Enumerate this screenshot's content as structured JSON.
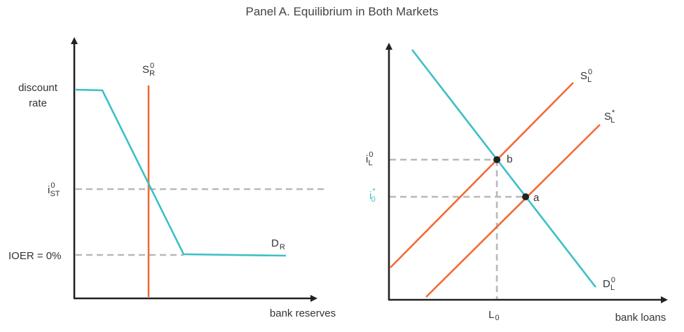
{
  "title": "Panel A. Equilibrium in Both Markets",
  "left_panel": {
    "ylabel_line1": "discount",
    "ylabel_line2": "rate",
    "xlabel": "bank reserves",
    "istar_main": "i",
    "istar_sup": "0",
    "istar_sub": "ST",
    "ioer": "IOER = 0%",
    "supply_main": "S",
    "supply_sup": "0",
    "supply_sub": "R",
    "demand_main": "D",
    "demand_sub": "R"
  },
  "right_panel": {
    "xlabel": "bank loans",
    "il_main": "i",
    "il_sup": "0",
    "il_sub": "L",
    "i0_main": "i",
    "i0_sup": "*",
    "i0_sub": "0",
    "l0_main": "L",
    "l0_sub": "0",
    "point_b": "b",
    "point_a": "a",
    "s0_main": "S",
    "s0_sup": "0",
    "s0_sub": "L",
    "s1_main": "S",
    "s1_sup": "*",
    "s1_sub": "L",
    "d_main": "D",
    "d_sup": "0",
    "d_sub": "L"
  },
  "colors": {
    "supply": "#f26b36",
    "demand": "#3dbfc6",
    "axis": "#222222",
    "guide": "#b8b8b8"
  }
}
